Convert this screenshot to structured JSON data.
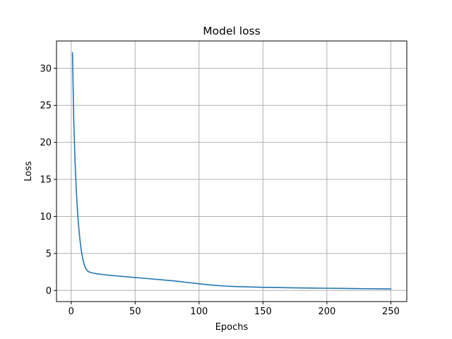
{
  "chart_data": {
    "type": "line",
    "title": "Model loss",
    "xlabel": "Epochs",
    "ylabel": "Loss",
    "xlim": [
      -11.5,
      262.5
    ],
    "ylim": [
      -1.5,
      33.7
    ],
    "xticks": [
      0,
      50,
      100,
      150,
      200,
      250
    ],
    "yticks": [
      0,
      5,
      10,
      15,
      20,
      25,
      30
    ],
    "grid": true,
    "legend": "none",
    "series": [
      {
        "color": "#1f77b4",
        "x": [
          1,
          2,
          3,
          4,
          5,
          6,
          7,
          8,
          9,
          10,
          11,
          12,
          13,
          14,
          15,
          17,
          20,
          25,
          30,
          40,
          50,
          60,
          70,
          80,
          90,
          100,
          110,
          120,
          130,
          140,
          150,
          160,
          170,
          180,
          190,
          200,
          210,
          220,
          230,
          240,
          250
        ],
        "y": [
          32.1,
          23.0,
          17.5,
          13.5,
          10.5,
          8.3,
          6.6,
          5.3,
          4.3,
          3.6,
          3.1,
          2.8,
          2.6,
          2.5,
          2.45,
          2.35,
          2.25,
          2.15,
          2.05,
          1.9,
          1.75,
          1.6,
          1.45,
          1.3,
          1.1,
          0.9,
          0.72,
          0.6,
          0.52,
          0.47,
          0.43,
          0.4,
          0.37,
          0.34,
          0.32,
          0.3,
          0.28,
          0.26,
          0.24,
          0.22,
          0.2
        ]
      }
    ]
  }
}
